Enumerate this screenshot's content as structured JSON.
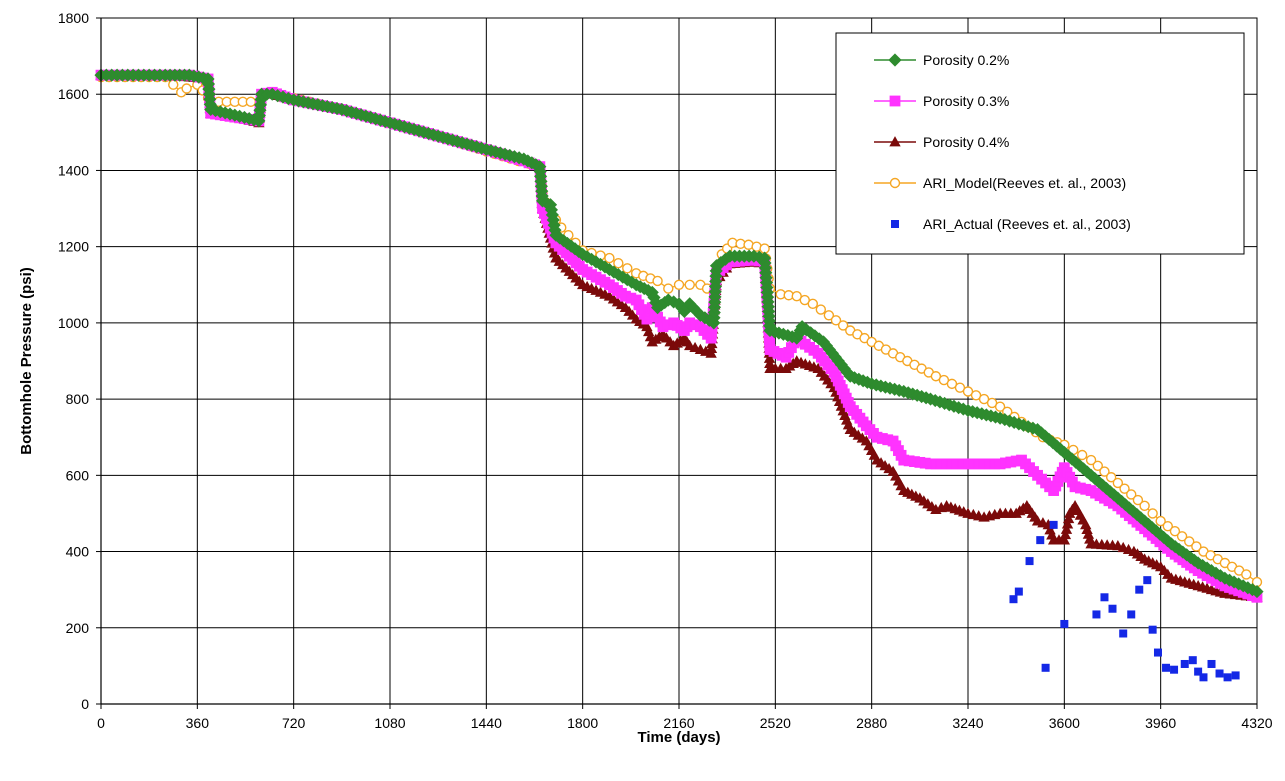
{
  "chart_data": {
    "type": "line",
    "title": "",
    "xlabel": "Time (days)",
    "ylabel": "Bottomhole Pressure (psi)",
    "xlim": [
      0,
      4320
    ],
    "ylim": [
      0,
      1800
    ],
    "xticks": [
      0,
      360,
      720,
      1080,
      1440,
      1800,
      2160,
      2520,
      2880,
      3240,
      3600,
      3960,
      4320
    ],
    "yticks": [
      0,
      200,
      400,
      600,
      800,
      1000,
      1200,
      1400,
      1600,
      1800
    ],
    "grid": true,
    "legend_position": "top-right",
    "series": [
      {
        "name": "Porosity 0.2%",
        "marker": "diamond",
        "color": "#2e8b2e",
        "points": [
          [
            0,
            1650
          ],
          [
            120,
            1650
          ],
          [
            240,
            1650
          ],
          [
            330,
            1650
          ],
          [
            400,
            1640
          ],
          [
            410,
            1560
          ],
          [
            500,
            1545
          ],
          [
            590,
            1530
          ],
          [
            600,
            1600
          ],
          [
            640,
            1600
          ],
          [
            720,
            1585
          ],
          [
            900,
            1560
          ],
          [
            1080,
            1525
          ],
          [
            1260,
            1490
          ],
          [
            1440,
            1455
          ],
          [
            1580,
            1430
          ],
          [
            1640,
            1410
          ],
          [
            1650,
            1320
          ],
          [
            1680,
            1310
          ],
          [
            1700,
            1230
          ],
          [
            1800,
            1180
          ],
          [
            1900,
            1140
          ],
          [
            2000,
            1100
          ],
          [
            2060,
            1080
          ],
          [
            2080,
            1040
          ],
          [
            2120,
            1060
          ],
          [
            2160,
            1050
          ],
          [
            2180,
            1030
          ],
          [
            2200,
            1050
          ],
          [
            2240,
            1020
          ],
          [
            2290,
            1000
          ],
          [
            2300,
            1150
          ],
          [
            2350,
            1175
          ],
          [
            2440,
            1175
          ],
          [
            2480,
            1170
          ],
          [
            2490,
            1080
          ],
          [
            2500,
            980
          ],
          [
            2600,
            960
          ],
          [
            2620,
            990
          ],
          [
            2700,
            950
          ],
          [
            2800,
            860
          ],
          [
            2880,
            840
          ],
          [
            3000,
            820
          ],
          [
            3100,
            800
          ],
          [
            3240,
            770
          ],
          [
            3360,
            750
          ],
          [
            3500,
            720
          ],
          [
            3600,
            660
          ],
          [
            3700,
            600
          ],
          [
            3800,
            540
          ],
          [
            3900,
            480
          ],
          [
            4000,
            420
          ],
          [
            4100,
            370
          ],
          [
            4200,
            330
          ],
          [
            4320,
            295
          ]
        ]
      },
      {
        "name": "Porosity 0.3%",
        "marker": "square",
        "color": "#ff33ff",
        "points": [
          [
            0,
            1650
          ],
          [
            120,
            1650
          ],
          [
            240,
            1650
          ],
          [
            330,
            1650
          ],
          [
            400,
            1640
          ],
          [
            410,
            1550
          ],
          [
            500,
            1540
          ],
          [
            590,
            1530
          ],
          [
            600,
            1600
          ],
          [
            640,
            1605
          ],
          [
            720,
            1585
          ],
          [
            900,
            1560
          ],
          [
            1080,
            1525
          ],
          [
            1260,
            1490
          ],
          [
            1440,
            1455
          ],
          [
            1580,
            1425
          ],
          [
            1640,
            1410
          ],
          [
            1650,
            1300
          ],
          [
            1700,
            1210
          ],
          [
            1800,
            1140
          ],
          [
            1900,
            1100
          ],
          [
            1960,
            1070
          ],
          [
            2000,
            1060
          ],
          [
            2040,
            1010
          ],
          [
            2060,
            1040
          ],
          [
            2100,
            990
          ],
          [
            2140,
            1000
          ],
          [
            2180,
            980
          ],
          [
            2200,
            1000
          ],
          [
            2240,
            990
          ],
          [
            2280,
            960
          ],
          [
            2300,
            1130
          ],
          [
            2350,
            1160
          ],
          [
            2440,
            1165
          ],
          [
            2480,
            1160
          ],
          [
            2490,
            1050
          ],
          [
            2500,
            930
          ],
          [
            2560,
            910
          ],
          [
            2600,
            960
          ],
          [
            2680,
            920
          ],
          [
            2740,
            870
          ],
          [
            2800,
            780
          ],
          [
            2860,
            730
          ],
          [
            2900,
            700
          ],
          [
            2960,
            690
          ],
          [
            3000,
            640
          ],
          [
            3100,
            630
          ],
          [
            3240,
            630
          ],
          [
            3360,
            630
          ],
          [
            3440,
            640
          ],
          [
            3500,
            600
          ],
          [
            3560,
            560
          ],
          [
            3600,
            620
          ],
          [
            3640,
            570
          ],
          [
            3700,
            560
          ],
          [
            3800,
            520
          ],
          [
            3900,
            460
          ],
          [
            4000,
            400
          ],
          [
            4100,
            350
          ],
          [
            4200,
            310
          ],
          [
            4320,
            280
          ]
        ]
      },
      {
        "name": "Porosity 0.4%",
        "marker": "triangle",
        "color": "#7b0a0a",
        "points": [
          [
            0,
            1650
          ],
          [
            120,
            1650
          ],
          [
            240,
            1650
          ],
          [
            330,
            1645
          ],
          [
            400,
            1640
          ],
          [
            410,
            1550
          ],
          [
            500,
            1540
          ],
          [
            590,
            1525
          ],
          [
            600,
            1600
          ],
          [
            640,
            1600
          ],
          [
            720,
            1585
          ],
          [
            900,
            1560
          ],
          [
            1080,
            1525
          ],
          [
            1260,
            1490
          ],
          [
            1440,
            1455
          ],
          [
            1580,
            1425
          ],
          [
            1640,
            1410
          ],
          [
            1650,
            1300
          ],
          [
            1700,
            1170
          ],
          [
            1800,
            1100
          ],
          [
            1900,
            1070
          ],
          [
            1960,
            1040
          ],
          [
            2000,
            1010
          ],
          [
            2040,
            990
          ],
          [
            2060,
            950
          ],
          [
            2100,
            970
          ],
          [
            2140,
            940
          ],
          [
            2180,
            960
          ],
          [
            2200,
            940
          ],
          [
            2240,
            930
          ],
          [
            2280,
            920
          ],
          [
            2300,
            1110
          ],
          [
            2350,
            1155
          ],
          [
            2440,
            1160
          ],
          [
            2480,
            1155
          ],
          [
            2490,
            1040
          ],
          [
            2500,
            880
          ],
          [
            2560,
            880
          ],
          [
            2600,
            900
          ],
          [
            2680,
            880
          ],
          [
            2740,
            830
          ],
          [
            2800,
            720
          ],
          [
            2860,
            690
          ],
          [
            2900,
            640
          ],
          [
            2960,
            610
          ],
          [
            3000,
            560
          ],
          [
            3060,
            540
          ],
          [
            3120,
            510
          ],
          [
            3160,
            520
          ],
          [
            3240,
            500
          ],
          [
            3300,
            490
          ],
          [
            3360,
            500
          ],
          [
            3420,
            500
          ],
          [
            3460,
            520
          ],
          [
            3500,
            480
          ],
          [
            3540,
            470
          ],
          [
            3560,
            430
          ],
          [
            3600,
            430
          ],
          [
            3620,
            500
          ],
          [
            3640,
            520
          ],
          [
            3680,
            470
          ],
          [
            3700,
            420
          ],
          [
            3800,
            415
          ],
          [
            3860,
            400
          ],
          [
            3900,
            380
          ],
          [
            3960,
            360
          ],
          [
            4000,
            330
          ],
          [
            4100,
            310
          ],
          [
            4200,
            290
          ],
          [
            4320,
            280
          ]
        ]
      },
      {
        "name": "ARI_Model(Reeves et. al., 2003)",
        "marker": "circle-open",
        "color": "#f5a623",
        "points": [
          [
            0,
            1645
          ],
          [
            60,
            1645
          ],
          [
            120,
            1645
          ],
          [
            180,
            1645
          ],
          [
            240,
            1645
          ],
          [
            270,
            1625
          ],
          [
            300,
            1605
          ],
          [
            320,
            1615
          ],
          [
            360,
            1625
          ],
          [
            380,
            1610
          ],
          [
            400,
            1590
          ],
          [
            440,
            1580
          ],
          [
            500,
            1580
          ],
          [
            560,
            1580
          ],
          [
            600,
            1590
          ],
          [
            640,
            1600
          ],
          [
            720,
            1590
          ],
          [
            900,
            1560
          ],
          [
            1080,
            1525
          ],
          [
            1260,
            1490
          ],
          [
            1440,
            1450
          ],
          [
            1560,
            1425
          ],
          [
            1640,
            1410
          ],
          [
            1650,
            1340
          ],
          [
            1680,
            1290
          ],
          [
            1720,
            1250
          ],
          [
            1800,
            1190
          ],
          [
            1900,
            1170
          ],
          [
            2000,
            1130
          ],
          [
            2080,
            1110
          ],
          [
            2120,
            1090
          ],
          [
            2160,
            1100
          ],
          [
            2200,
            1100
          ],
          [
            2240,
            1100
          ],
          [
            2290,
            1080
          ],
          [
            2320,
            1180
          ],
          [
            2360,
            1210
          ],
          [
            2420,
            1205
          ],
          [
            2480,
            1195
          ],
          [
            2500,
            1090
          ],
          [
            2540,
            1075
          ],
          [
            2600,
            1070
          ],
          [
            2660,
            1050
          ],
          [
            2720,
            1020
          ],
          [
            2800,
            980
          ],
          [
            2880,
            950
          ],
          [
            2960,
            920
          ],
          [
            3040,
            890
          ],
          [
            3120,
            860
          ],
          [
            3240,
            820
          ],
          [
            3360,
            780
          ],
          [
            3440,
            740
          ],
          [
            3520,
            700
          ],
          [
            3600,
            680
          ],
          [
            3700,
            640
          ],
          [
            3800,
            580
          ],
          [
            3900,
            520
          ],
          [
            3960,
            480
          ],
          [
            4040,
            440
          ],
          [
            4120,
            400
          ],
          [
            4200,
            370
          ],
          [
            4280,
            340
          ],
          [
            4320,
            320
          ]
        ]
      },
      {
        "name": "ARI_Actual (Reeves et. al., 2003)",
        "marker": "square-small",
        "color": "#1428e6",
        "scatter_only": true,
        "points": [
          [
            3410,
            275
          ],
          [
            3430,
            295
          ],
          [
            3470,
            375
          ],
          [
            3510,
            430
          ],
          [
            3530,
            95
          ],
          [
            3560,
            470
          ],
          [
            3600,
            210
          ],
          [
            3720,
            235
          ],
          [
            3750,
            280
          ],
          [
            3780,
            250
          ],
          [
            3820,
            185
          ],
          [
            3850,
            235
          ],
          [
            3880,
            300
          ],
          [
            3910,
            325
          ],
          [
            3930,
            195
          ],
          [
            3950,
            135
          ],
          [
            3980,
            95
          ],
          [
            4010,
            90
          ],
          [
            4050,
            105
          ],
          [
            4080,
            115
          ],
          [
            4100,
            85
          ],
          [
            4120,
            70
          ],
          [
            4150,
            105
          ],
          [
            4180,
            80
          ],
          [
            4210,
            70
          ],
          [
            4240,
            75
          ]
        ]
      }
    ]
  }
}
